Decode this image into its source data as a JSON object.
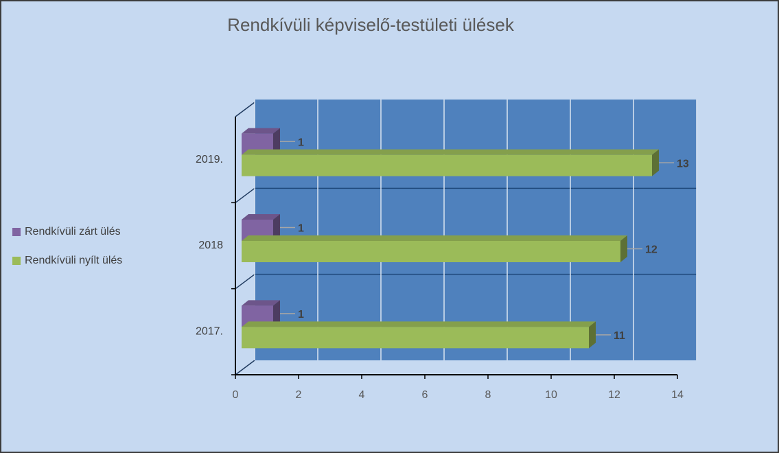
{
  "chart_data": {
    "type": "bar",
    "orientation": "horizontal",
    "title": "Rendkívüli képviselő-testületi ülések",
    "categories": [
      "2017.",
      "2018",
      "2019."
    ],
    "series": [
      {
        "name": "Rendkívüli zárt ülés",
        "color": "#8064a2",
        "values": [
          1,
          1,
          1
        ]
      },
      {
        "name": "Rendkívüli nyílt ülés",
        "color": "#9bbb59",
        "values": [
          11,
          12,
          13
        ]
      }
    ],
    "xlim": [
      0,
      14
    ],
    "xticks": [
      0,
      2,
      4,
      6,
      8,
      10,
      12,
      14
    ],
    "grid": true,
    "legend": "left"
  }
}
